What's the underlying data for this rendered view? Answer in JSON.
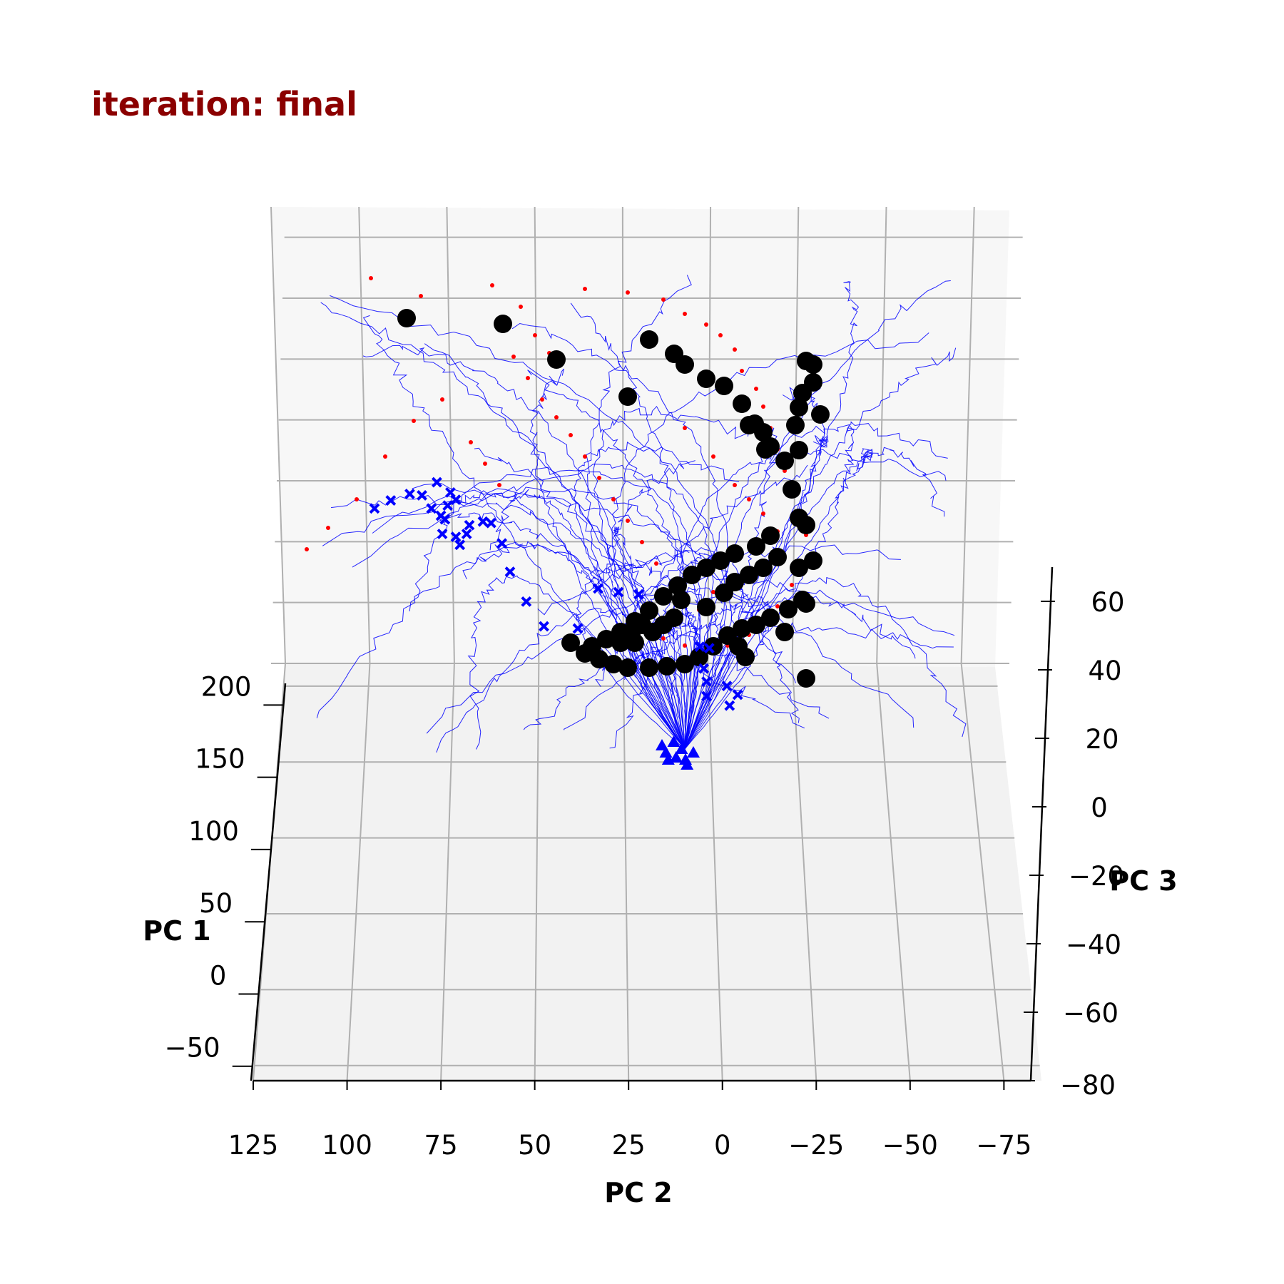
{
  "chart_data": {
    "type": "scatter",
    "projection": "3d",
    "title": "iteration: final",
    "title_color": "#8b0000",
    "axes": {
      "x": {
        "label": "PC 2",
        "range": [
          125,
          -85
        ],
        "ticks": [
          125,
          100,
          75,
          50,
          25,
          0,
          -25,
          -50,
          -75
        ],
        "tick_labels": [
          "125",
          "100",
          "75",
          "50",
          "25",
          "0",
          "−25",
          "−50",
          "−75"
        ]
      },
      "y": {
        "label": "PC 1",
        "range": [
          -60,
          215
        ],
        "ticks": [
          -50,
          0,
          50,
          100,
          150,
          200
        ],
        "tick_labels": [
          "−50",
          "0",
          "50",
          "100",
          "150",
          "200"
        ]
      },
      "z": {
        "label": "PC 3",
        "range": [
          -80,
          70
        ],
        "ticks": [
          -80,
          -60,
          -40,
          -20,
          0,
          20,
          40,
          60
        ],
        "tick_labels": [
          "−80",
          "−60",
          "−40",
          "−20",
          "0",
          "20",
          "40",
          "60"
        ]
      }
    },
    "grid": true,
    "legend": "none",
    "series": [
      {
        "role": "trajectories",
        "marker": "thin line",
        "color": "#0000ff",
        "count": 60
      },
      {
        "role": "trajectory start",
        "marker": "x",
        "color": "#0000ff"
      },
      {
        "role": "trajectory end",
        "marker": "triangle",
        "color": "#0000ff"
      },
      {
        "role": "intermediate points",
        "marker": "small dot",
        "color": "#ff0000"
      },
      {
        "role": "attractor points",
        "marker": "large dot",
        "color": "#000000"
      }
    ],
    "markers": {
      "blue_x": [
        [
          150,
          640
        ],
        [
          162,
          629
        ],
        [
          176,
          620
        ],
        [
          185,
          622
        ],
        [
          192,
          640
        ],
        [
          199,
          650
        ],
        [
          206,
          618
        ],
        [
          196,
          604
        ],
        [
          204,
          636
        ],
        [
          210,
          628
        ],
        [
          213,
          690
        ],
        [
          202,
          655
        ],
        [
          200,
          675
        ],
        [
          210,
          679
        ],
        [
          218,
          675
        ],
        [
          220,
          663
        ],
        [
          230,
          658
        ],
        [
          236,
          660
        ],
        [
          244,
          688
        ],
        [
          250,
          727
        ],
        [
          262,
          768
        ],
        [
          275,
          802
        ],
        [
          300,
          805
        ],
        [
          315,
          750
        ],
        [
          330,
          755
        ],
        [
          345,
          758
        ],
        [
          390,
          830
        ],
        [
          397,
          832
        ],
        [
          393,
          860
        ],
        [
          395,
          878
        ],
        [
          395,
          898
        ],
        [
          410,
          884
        ],
        [
          418,
          896
        ],
        [
          412,
          911
        ]
      ],
      "blue_triangles": [
        [
          380,
          895
        ],
        [
          395,
          890
        ],
        [
          405,
          900
        ],
        [
          385,
          905
        ],
        [
          398,
          912
        ],
        [
          410,
          915
        ],
        [
          420,
          905
        ],
        [
          388,
          915
        ],
        [
          412,
          922
        ]
      ],
      "black_dots": [
        [
          540,
          440
        ],
        [
          675,
          448
        ],
        [
          750,
          498
        ],
        [
          850,
          550
        ],
        [
          880,
          470
        ],
        [
          915,
          490
        ],
        [
          930,
          505
        ],
        [
          960,
          525
        ],
        [
          985,
          535
        ],
        [
          1010,
          560
        ],
        [
          1020,
          590
        ],
        [
          1040,
          600
        ],
        [
          1050,
          620
        ],
        [
          1070,
          640
        ],
        [
          1080,
          680
        ],
        [
          1090,
          720
        ],
        [
          1100,
          730
        ],
        [
          1050,
          745
        ],
        [
          1030,
          760
        ],
        [
          1000,
          770
        ],
        [
          980,
          780
        ],
        [
          960,
          790
        ],
        [
          940,
          800
        ],
        [
          920,
          815
        ],
        [
          900,
          830
        ],
        [
          880,
          850
        ],
        [
          860,
          865
        ],
        [
          840,
          880
        ],
        [
          820,
          890
        ],
        [
          800,
          900
        ],
        [
          790,
          910
        ],
        [
          810,
          918
        ],
        [
          830,
          925
        ],
        [
          850,
          930
        ],
        [
          880,
          930
        ],
        [
          905,
          928
        ],
        [
          930,
          925
        ],
        [
          950,
          915
        ],
        [
          970,
          900
        ],
        [
          990,
          885
        ],
        [
          1010,
          875
        ],
        [
          1030,
          870
        ],
        [
          1050,
          860
        ],
        [
          1075,
          848
        ],
        [
          1095,
          835
        ],
        [
          1100,
          840
        ],
        [
          1110,
          780
        ],
        [
          1100,
          945
        ],
        [
          1005,
          900
        ],
        [
          1015,
          915
        ],
        [
          925,
          835
        ],
        [
          960,
          845
        ],
        [
          985,
          825
        ],
        [
          1000,
          810
        ],
        [
          1020,
          800
        ],
        [
          1040,
          790
        ],
        [
          1060,
          775
        ],
        [
          1090,
          790
        ],
        [
          1070,
          880
        ],
        [
          860,
          895
        ],
        [
          870,
          870
        ],
        [
          885,
          880
        ],
        [
          900,
          870
        ],
        [
          915,
          860
        ],
        [
          840,
          895
        ],
        [
          855,
          885
        ],
        [
          1028,
          588
        ],
        [
          1043,
          624
        ],
        [
          1100,
          500
        ],
        [
          1110,
          505
        ],
        [
          1095,
          545
        ],
        [
          1110,
          530
        ],
        [
          1090,
          565
        ],
        [
          1120,
          575
        ],
        [
          1085,
          590
        ],
        [
          1090,
          625
        ],
        [
          770,
          895
        ]
      ],
      "red_dots": [
        [
          520,
          390
        ],
        [
          590,
          415
        ],
        [
          690,
          400
        ],
        [
          730,
          430
        ],
        [
          750,
          470
        ],
        [
          770,
          495
        ],
        [
          820,
          405
        ],
        [
          880,
          410
        ],
        [
          930,
          420
        ],
        [
          960,
          440
        ],
        [
          990,
          455
        ],
        [
          1010,
          470
        ],
        [
          1030,
          490
        ],
        [
          1040,
          520
        ],
        [
          1060,
          545
        ],
        [
          1070,
          570
        ],
        [
          1080,
          600
        ],
        [
          1090,
          630
        ],
        [
          1100,
          660
        ],
        [
          1110,
          690
        ],
        [
          1120,
          720
        ],
        [
          1130,
          750
        ],
        [
          1120,
          790
        ],
        [
          1110,
          820
        ],
        [
          1090,
          850
        ],
        [
          1070,
          870
        ],
        [
          1050,
          890
        ],
        [
          1020,
          905
        ],
        [
          990,
          910
        ],
        [
          960,
          905
        ],
        [
          930,
          895
        ],
        [
          700,
          450
        ],
        [
          720,
          500
        ],
        [
          740,
          530
        ],
        [
          760,
          560
        ],
        [
          780,
          585
        ],
        [
          800,
          610
        ],
        [
          820,
          640
        ],
        [
          840,
          670
        ],
        [
          860,
          700
        ],
        [
          880,
          730
        ],
        [
          900,
          760
        ],
        [
          920,
          790
        ],
        [
          660,
          620
        ],
        [
          680,
          650
        ],
        [
          700,
          680
        ],
        [
          620,
          560
        ],
        [
          580,
          590
        ],
        [
          540,
          640
        ],
        [
          500,
          700
        ],
        [
          460,
          740
        ],
        [
          430,
          770
        ],
        [
          960,
          600
        ],
        [
          1000,
          640
        ],
        [
          1030,
          680
        ],
        [
          1050,
          700
        ],
        [
          1070,
          720
        ],
        [
          1090,
          745
        ],
        [
          1000,
          830
        ],
        [
          980,
          855
        ],
        [
          950,
          870
        ]
      ]
    }
  }
}
